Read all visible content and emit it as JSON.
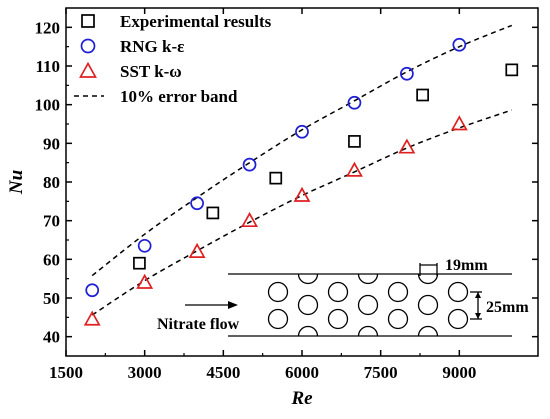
{
  "chart_data": {
    "type": "scatter",
    "title": "",
    "xlabel": "Re",
    "ylabel": "Nu",
    "xlim": [
      1500,
      10500
    ],
    "ylim": [
      35,
      125
    ],
    "xticks": [
      1500,
      3000,
      4500,
      6000,
      7500,
      9000
    ],
    "yticks": [
      40,
      50,
      60,
      70,
      80,
      90,
      100,
      110,
      120
    ],
    "grid": false,
    "legend_position": "top-left",
    "series": [
      {
        "name": "Experimental results",
        "marker": "square",
        "color": "#000000",
        "points": [
          [
            2900,
            59
          ],
          [
            4300,
            72
          ],
          [
            5500,
            81
          ],
          [
            7000,
            90.5
          ],
          [
            8300,
            102.5
          ],
          [
            10000,
            109
          ]
        ]
      },
      {
        "name": "RNG k-ε",
        "marker": "circle",
        "color": "#1f1fd6",
        "points": [
          [
            2000,
            52
          ],
          [
            3000,
            63.5
          ],
          [
            4000,
            74.5
          ],
          [
            5000,
            84.5
          ],
          [
            6000,
            93
          ],
          [
            7000,
            100.5
          ],
          [
            8000,
            108
          ],
          [
            9000,
            115.5
          ]
        ]
      },
      {
        "name": "SST k-ω",
        "marker": "triangle",
        "color": "#e02020",
        "points": [
          [
            2000,
            44.5
          ],
          [
            3000,
            54
          ],
          [
            4000,
            62
          ],
          [
            5000,
            70
          ],
          [
            6000,
            76.5
          ],
          [
            7000,
            83
          ],
          [
            8000,
            89
          ],
          [
            9000,
            95
          ]
        ]
      }
    ],
    "error_band": {
      "name": "10% error band",
      "upper": [
        [
          2000,
          55.8
        ],
        [
          3000,
          66.5
        ],
        [
          4000,
          76
        ],
        [
          5000,
          85
        ],
        [
          6000,
          93.5
        ],
        [
          7000,
          101
        ],
        [
          8000,
          108.5
        ],
        [
          9000,
          115
        ],
        [
          10000,
          120.5
        ]
      ],
      "lower": [
        [
          2000,
          45.6
        ],
        [
          3000,
          54.5
        ],
        [
          4000,
          62.2
        ],
        [
          5000,
          69.6
        ],
        [
          6000,
          76.5
        ],
        [
          7000,
          82.6
        ],
        [
          8000,
          88.8
        ],
        [
          9000,
          94
        ],
        [
          10000,
          98.6
        ]
      ]
    },
    "inset": {
      "flow_label": "Nitrate flow",
      "dim_pitch": "19mm",
      "dim_spacing": "25mm"
    }
  }
}
